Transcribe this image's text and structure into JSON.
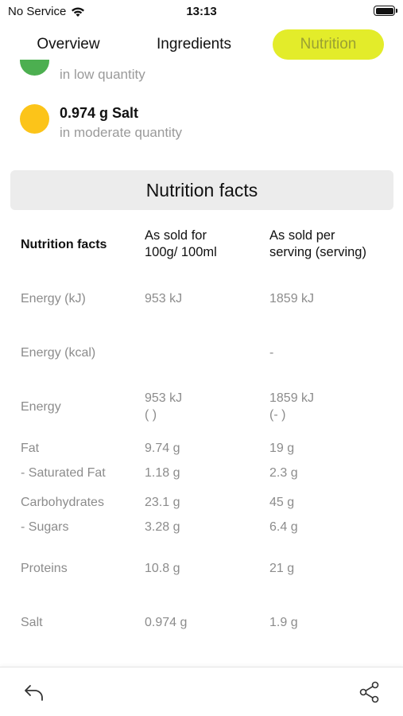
{
  "status": {
    "carrier": "No Service",
    "time": "13:13",
    "battery_level": 1.0
  },
  "tabs": [
    {
      "label": "Overview",
      "selected": false
    },
    {
      "label": "Ingredients",
      "selected": false
    },
    {
      "label": "Nutrition",
      "selected": true
    }
  ],
  "colors": {
    "tab_selected_bg": "#e3ec2a",
    "level_low": "#4caf50",
    "level_moderate": "#fcc419"
  },
  "levels": [
    {
      "title": "",
      "subtitle": "in low quantity",
      "level": "low"
    },
    {
      "title": "0.974 g Salt",
      "subtitle": "in moderate quantity",
      "level": "moderate"
    }
  ],
  "nutrition": {
    "section_title": "Nutrition facts",
    "header": {
      "label": "Nutrition facts",
      "col1": "As sold for\n100g/ 100ml",
      "col2": "As sold per\nserving (serving)"
    },
    "rows": [
      {
        "name": "Energy (kJ)",
        "per100": "953 kJ",
        "serving": "1859 kJ"
      },
      {
        "name": "Energy (kcal)",
        "per100": "",
        "serving": "-"
      },
      {
        "name": "Energy",
        "per100": "953 kJ\n( )",
        "serving": "1859 kJ\n(- )"
      },
      {
        "name": "Fat",
        "per100": "9.74 g",
        "serving": "19 g"
      },
      {
        "name": "- Saturated Fat",
        "per100": "1.18 g",
        "serving": "2.3 g"
      },
      {
        "name": "Carbohydrates",
        "per100": "23.1 g",
        "serving": "45 g"
      },
      {
        "name": "- Sugars",
        "per100": "3.28 g",
        "serving": "6.4 g"
      },
      {
        "name": "Proteins",
        "per100": "10.8 g",
        "serving": "21 g"
      },
      {
        "name": "Salt",
        "per100": "0.974 g",
        "serving": "1.9 g"
      }
    ]
  },
  "bottom_bar": {
    "back_icon": "undo-arrow-icon",
    "share_icon": "share-icon"
  }
}
